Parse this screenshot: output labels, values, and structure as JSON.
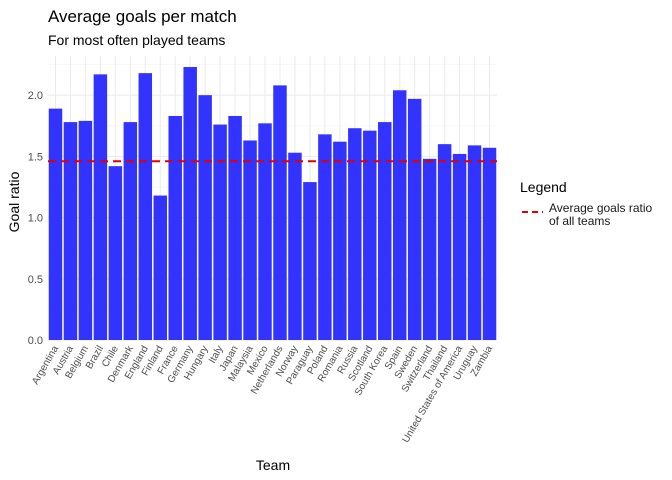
{
  "chart_data": {
    "type": "bar",
    "title": "Average goals per match",
    "subtitle": "For most often played teams",
    "xlabel": "Team",
    "ylabel": "Goal ratio",
    "ylim": [
      0,
      2.32
    ],
    "yticks": [
      "0.0",
      "0.5",
      "1.0",
      "1.5",
      "2.0"
    ],
    "grid": true,
    "bar_color": "#3333ff",
    "reference_line": {
      "value": 1.46,
      "color": "#e00000",
      "style": "dashed"
    },
    "legend": {
      "position": "right",
      "title": "Legend",
      "labels": [
        "Average goals ratio",
        "of all teams"
      ]
    },
    "categories": [
      "Argentina",
      "Austria",
      "Belgium",
      "Brazil",
      "Chile",
      "Denmark",
      "England",
      "Finland",
      "France",
      "Germany",
      "Hungary",
      "Italy",
      "Japan",
      "Malaysia",
      "Mexico",
      "Netherlands",
      "Norway",
      "Paraguay",
      "Poland",
      "Romania",
      "Russia",
      "Scotland",
      "South Korea",
      "Spain",
      "Sweden",
      "Switzerland",
      "Thailand",
      "United States of America",
      "Uruguay",
      "Zambia"
    ],
    "values": [
      1.89,
      1.78,
      1.79,
      2.17,
      1.42,
      1.78,
      2.18,
      1.18,
      1.83,
      2.23,
      2.0,
      1.76,
      1.83,
      1.63,
      1.77,
      2.08,
      1.53,
      1.29,
      1.68,
      1.62,
      1.73,
      1.71,
      1.78,
      2.04,
      1.97,
      1.48,
      1.6,
      1.52,
      1.59,
      1.57
    ]
  }
}
